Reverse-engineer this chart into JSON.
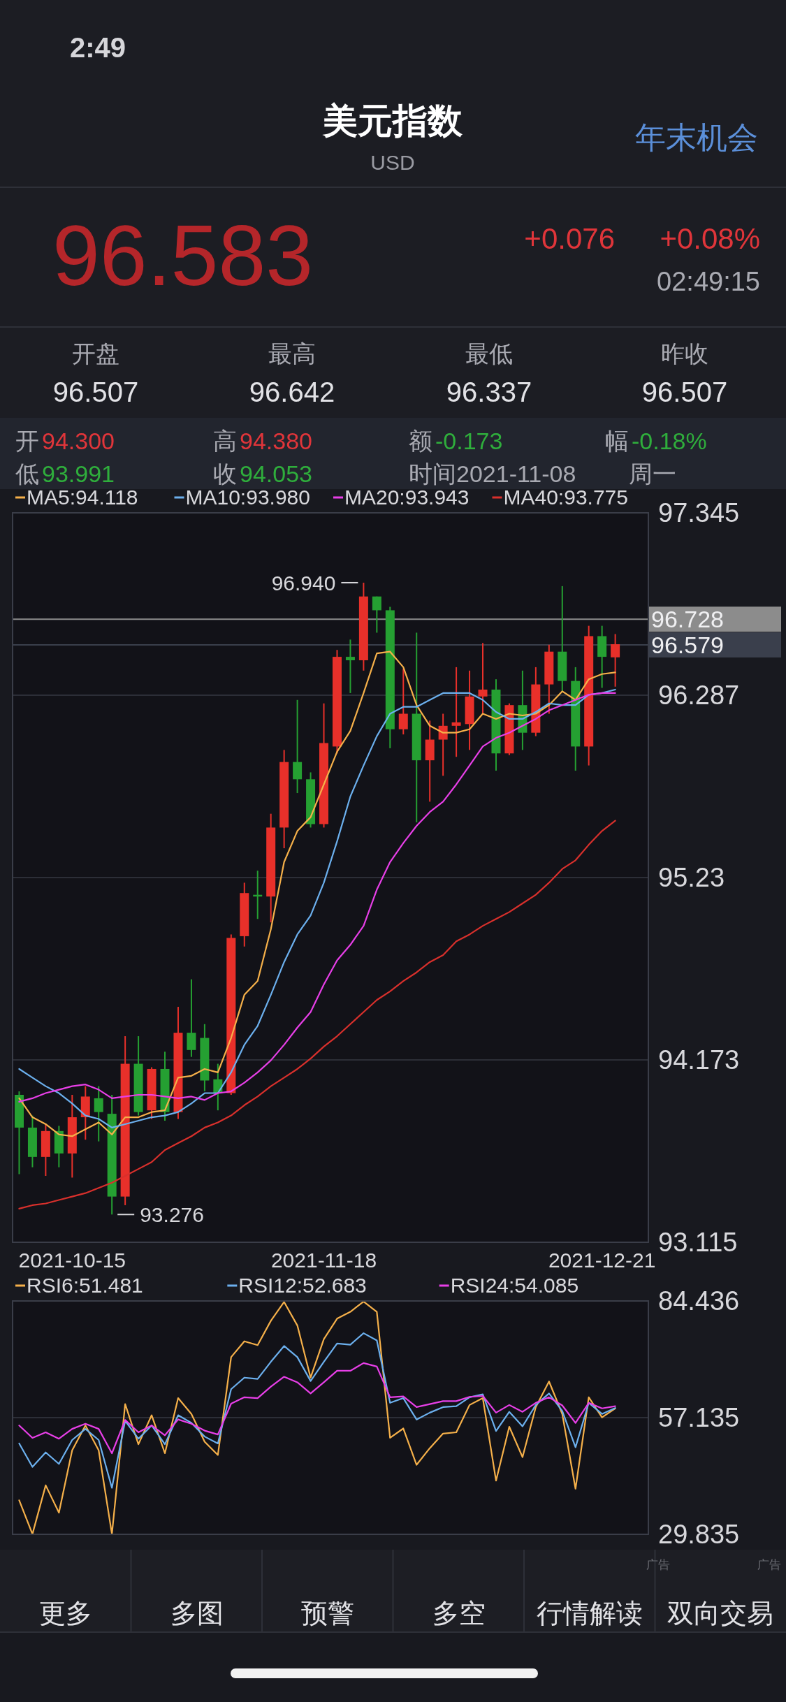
{
  "chart_data": [
    {
      "type": "other",
      "title": "美元指数",
      "subtitle": "USD",
      "annotations": [
        "2:49",
        "年末机会",
        "96.583",
        "+0.076",
        "+0.08%",
        "02:49:15",
        "开盘",
        "96.507",
        "最高",
        "96.642",
        "最低",
        "96.337",
        "昨收",
        "96.507",
        "开",
        "94.300",
        "高",
        "94.380",
        "额",
        "-0.173",
        "幅",
        "-0.18%",
        "低",
        "93.991",
        "收",
        "94.053",
        "时间2021-11-08",
        "周一"
      ]
    },
    {
      "type": "candlestick",
      "categories": [
        null,
        null,
        null,
        null,
        "2021-10-15",
        null,
        null,
        null,
        null,
        null,
        null,
        null,
        null,
        null,
        null,
        null,
        null,
        null,
        null,
        null,
        null,
        null,
        null,
        "2021-11-18",
        null,
        null,
        null,
        null,
        null,
        null,
        null,
        null,
        null,
        null,
        null,
        null,
        null,
        null,
        null,
        null,
        null,
        null,
        null,
        null,
        "2021-12-21",
        null
      ],
      "ohlc": [
        [
          93.97,
          93.99,
          93.51,
          93.78
        ],
        [
          93.78,
          93.85,
          93.55,
          93.61
        ],
        [
          93.61,
          93.8,
          93.5,
          93.76
        ],
        [
          93.76,
          93.79,
          93.55,
          93.63
        ],
        [
          93.63,
          93.97,
          93.49,
          93.84
        ],
        [
          93.84,
          94.02,
          93.71,
          93.96
        ],
        [
          93.95,
          94.02,
          93.7,
          93.87
        ],
        [
          93.86,
          93.97,
          93.276,
          93.38
        ],
        [
          93.38,
          94.31,
          93.33,
          94.15
        ],
        [
          94.15,
          94.31,
          93.85,
          93.87
        ],
        [
          93.88,
          94.13,
          93.83,
          94.12
        ],
        [
          94.12,
          94.22,
          93.82,
          93.87
        ],
        [
          93.87,
          94.48,
          93.83,
          94.33
        ],
        [
          94.33,
          94.64,
          94.19,
          94.23
        ],
        [
          94.3,
          94.38,
          93.991,
          94.053
        ],
        [
          94.06,
          94.15,
          93.88,
          93.98
        ],
        [
          93.98,
          94.9,
          93.97,
          94.88
        ],
        [
          94.89,
          95.2,
          94.83,
          95.14
        ],
        [
          95.13,
          95.27,
          94.99,
          95.12
        ],
        [
          95.12,
          95.6,
          94.97,
          95.52
        ],
        [
          95.52,
          95.97,
          95.4,
          95.9
        ],
        [
          95.9,
          96.26,
          95.72,
          95.8
        ],
        [
          95.8,
          95.84,
          95.52,
          95.54
        ],
        [
          95.54,
          96.24,
          95.52,
          96.01
        ],
        [
          95.99,
          96.55,
          95.95,
          96.51
        ],
        [
          96.51,
          96.61,
          96.3,
          96.49
        ],
        [
          96.49,
          96.94,
          96.43,
          96.86
        ],
        [
          96.86,
          96.86,
          96.65,
          96.78
        ],
        [
          96.78,
          96.8,
          95.98,
          96.09
        ],
        [
          96.09,
          96.44,
          96.06,
          96.18
        ],
        [
          96.18,
          96.65,
          95.55,
          95.91
        ],
        [
          95.91,
          96.14,
          95.67,
          96.03
        ],
        [
          96.03,
          96.18,
          95.82,
          96.11
        ],
        [
          96.11,
          96.45,
          95.93,
          96.13
        ],
        [
          96.12,
          96.43,
          95.97,
          96.28
        ],
        [
          96.28,
          96.59,
          96.18,
          96.32
        ],
        [
          96.32,
          96.38,
          95.85,
          95.95
        ],
        [
          95.95,
          96.24,
          95.94,
          96.23
        ],
        [
          96.23,
          96.43,
          95.97,
          96.07
        ],
        [
          96.07,
          96.45,
          96.05,
          96.35
        ],
        [
          96.35,
          96.58,
          96.18,
          96.54
        ],
        [
          96.54,
          96.92,
          96.31,
          96.37
        ],
        [
          96.37,
          96.45,
          95.85,
          95.99
        ],
        [
          95.99,
          96.69,
          95.88,
          96.63
        ],
        [
          96.63,
          96.69,
          96.33,
          96.51
        ],
        [
          96.507,
          96.642,
          96.337,
          96.583
        ]
      ],
      "colors": [
        "#25a032",
        "#25a032",
        "#e8302a",
        "#25a032",
        "#e8302a",
        "#e8302a",
        "#25a032",
        "#25a032",
        "#e8302a",
        "#25a032",
        "#e8302a",
        "#25a032",
        "#e8302a",
        "#25a032",
        "#25a032",
        "#25a032",
        "#e8302a",
        "#e8302a",
        "#25a032",
        "#e8302a",
        "#e8302a",
        "#25a032",
        "#25a032",
        "#e8302a",
        "#e8302a",
        "#25a032",
        "#e8302a",
        "#25a032",
        "#25a032",
        "#e8302a",
        "#25a032",
        "#e8302a",
        "#e8302a",
        "#e8302a",
        "#e8302a",
        "#e8302a",
        "#25a032",
        "#e8302a",
        "#25a032",
        "#e8302a",
        "#e8302a",
        "#25a032",
        "#25a032",
        "#e8302a",
        "#25a032",
        "#e8302a"
      ],
      "series": [
        {
          "name": "MA5:94.118",
          "type": "line",
          "color": "#f5b04a",
          "values": [
            93.95,
            93.84,
            93.8,
            93.74,
            93.73,
            93.77,
            93.81,
            93.74,
            93.84,
            93.84,
            93.87,
            93.88,
            94.07,
            94.08,
            94.12,
            94.1,
            94.3,
            94.55,
            94.63,
            94.93,
            95.32,
            95.5,
            95.58,
            95.77,
            95.96,
            96.08,
            96.3,
            96.53,
            96.54,
            96.45,
            96.23,
            96.11,
            96.07,
            96.07,
            96.09,
            96.18,
            96.15,
            96.18,
            96.17,
            96.18,
            96.23,
            96.31,
            96.26,
            96.38,
            96.41,
            96.42
          ]
        },
        {
          "name": "MA10:93.980",
          "type": "line",
          "color": "#6cb0ee",
          "values": [
            94.12,
            94.07,
            94.02,
            93.98,
            93.92,
            93.85,
            93.83,
            93.78,
            93.8,
            93.82,
            93.84,
            93.85,
            93.87,
            93.92,
            93.98,
            93.98,
            94.1,
            94.26,
            94.37,
            94.55,
            94.74,
            94.9,
            95.01,
            95.2,
            95.44,
            95.7,
            95.88,
            96.05,
            96.18,
            96.22,
            96.22,
            96.26,
            96.3,
            96.3,
            96.3,
            96.26,
            96.19,
            96.15,
            96.15,
            96.19,
            96.24,
            96.23,
            96.23,
            96.29,
            96.3,
            96.32
          ]
        },
        {
          "name": "MA20:93.943",
          "type": "line",
          "color": "#e83fe8",
          "values": [
            93.93,
            93.95,
            93.98,
            94.0,
            94.02,
            94.03,
            94.0,
            93.95,
            93.96,
            93.97,
            93.97,
            93.96,
            93.95,
            93.96,
            93.94,
            93.98,
            93.99,
            94.04,
            94.1,
            94.17,
            94.26,
            94.36,
            94.45,
            94.61,
            94.75,
            94.84,
            94.95,
            95.16,
            95.32,
            95.43,
            95.53,
            95.61,
            95.67,
            95.77,
            95.88,
            95.99,
            96.04,
            96.07,
            96.11,
            96.15,
            96.2,
            96.23,
            96.26,
            96.29,
            96.3,
            96.3
          ]
        },
        {
          "name": "MA40:93.775",
          "type": "line",
          "color": "#d9302c",
          "values": [
            93.31,
            93.33,
            93.34,
            93.36,
            93.38,
            93.4,
            93.43,
            93.46,
            93.5,
            93.54,
            93.58,
            93.65,
            93.69,
            93.73,
            93.78,
            93.81,
            93.85,
            93.91,
            93.96,
            94.02,
            94.07,
            94.12,
            94.18,
            94.25,
            94.31,
            94.38,
            94.45,
            94.52,
            94.57,
            94.63,
            94.68,
            94.74,
            94.78,
            94.86,
            94.9,
            94.95,
            94.99,
            95.03,
            95.08,
            95.13,
            95.2,
            95.28,
            95.33,
            95.42,
            95.5,
            95.56
          ]
        }
      ],
      "ylim": [
        93.115,
        97.345
      ],
      "yticks": [
        93.115,
        94.173,
        95.23,
        96.287,
        97.345
      ],
      "grid": "y",
      "legend": "top",
      "ref_lines": [
        {
          "axis": "y",
          "value": 96.728,
          "label": "96.728",
          "color": "#8c8c8c"
        },
        {
          "axis": "y",
          "value": 96.579,
          "label": "96.579",
          "color": "#3a3f4c"
        }
      ],
      "annotations": [
        "96.940",
        "93.276"
      ]
    },
    {
      "type": "line",
      "categories": [
        null,
        null,
        null,
        null,
        null,
        null,
        null,
        null,
        null,
        null,
        null,
        null,
        null,
        null,
        null,
        null,
        null,
        null,
        null,
        null,
        null,
        null,
        null,
        null,
        null,
        null,
        null,
        null,
        null,
        null,
        null,
        null,
        null,
        null,
        null,
        null,
        null,
        null,
        null,
        null,
        null,
        null,
        null,
        null,
        null,
        null
      ],
      "series": [
        {
          "name": "RSI6:51.481",
          "color": "#f5b04a",
          "values": [
            37.8,
            29.9,
            41.3,
            34.9,
            49.5,
            55.3,
            49.5,
            29.9,
            60.3,
            50.9,
            57.7,
            48.8,
            61.7,
            58.0,
            51.5,
            48.4,
            71.3,
            75.0,
            74.1,
            79.8,
            84.2,
            78.7,
            66.5,
            75.5,
            80.3,
            81.9,
            84.3,
            81.9,
            52.4,
            54.6,
            46.1,
            50.0,
            53.4,
            53.7,
            60.1,
            61.7,
            42.4,
            55.0,
            47.9,
            59.6,
            65.6,
            58.0,
            40.5,
            61.9,
            57.2,
            59.3
          ]
        },
        {
          "name": "RSI12:52.683",
          "color": "#6cb0ee",
          "values": [
            51.1,
            45.6,
            49.0,
            46.3,
            51.9,
            54.5,
            51.9,
            40.7,
            56.4,
            52.2,
            55.3,
            50.9,
            57.7,
            55.9,
            52.7,
            51.1,
            63.8,
            66.5,
            66.2,
            70.2,
            73.9,
            71.3,
            65.7,
            70.2,
            74.5,
            74.2,
            76.9,
            75.2,
            60.6,
            61.7,
            56.7,
            58.3,
            59.6,
            59.8,
            61.9,
            62.6,
            54.0,
            58.5,
            55.1,
            60.1,
            62.8,
            58.7,
            50.2,
            60.6,
            58.0,
            59.4
          ]
        },
        {
          "name": "RSI24:54.085",
          "color": "#e83fe8",
          "values": [
            55.3,
            52.4,
            53.7,
            52.2,
            54.5,
            55.7,
            54.5,
            48.8,
            56.6,
            53.7,
            55.3,
            53.0,
            56.7,
            55.7,
            54.1,
            53.2,
            60.4,
            61.9,
            61.7,
            64.4,
            66.7,
            65.4,
            62.8,
            65.4,
            68.1,
            68.1,
            69.9,
            69.1,
            61.9,
            62.1,
            59.6,
            60.3,
            61.0,
            61.0,
            62.0,
            62.2,
            58.3,
            60.1,
            58.5,
            60.6,
            61.9,
            60.0,
            55.9,
            60.6,
            59.3,
            59.8
          ]
        }
      ],
      "ylim": [
        29.835,
        84.436
      ],
      "yticks": [
        29.835,
        57.135,
        84.436
      ],
      "grid": "y",
      "legend": "top",
      "tick_labels": "y"
    },
    {
      "type": "other",
      "annotations": [
        "更多",
        "多图",
        "预警",
        "多空",
        "行情解读",
        "双向交易",
        "广告",
        "广告"
      ]
    }
  ]
}
